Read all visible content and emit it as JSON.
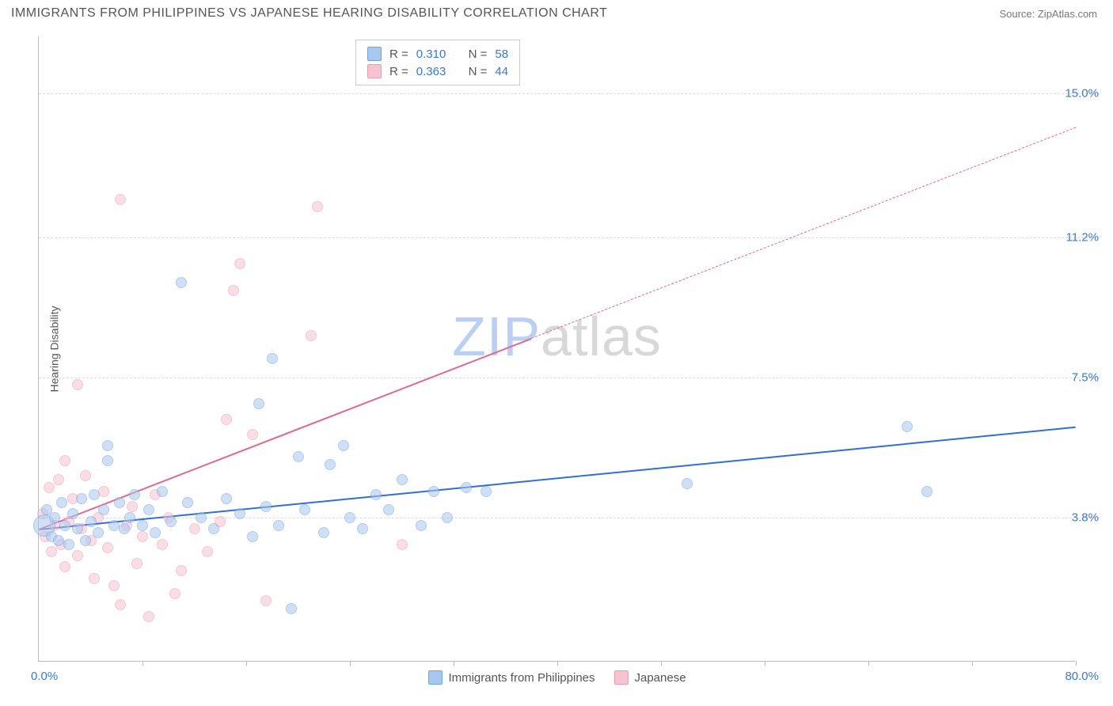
{
  "header": {
    "title": "IMMIGRANTS FROM PHILIPPINES VS JAPANESE HEARING DISABILITY CORRELATION CHART",
    "source": "Source: ZipAtlas.com"
  },
  "watermark": {
    "zip_color": "#b9cff3",
    "atlas_color": "#d8d8d8",
    "zip": "ZIP",
    "atlas": "atlas"
  },
  "chart": {
    "type": "scatter",
    "yaxis_title": "Hearing Disability",
    "xlim": [
      0,
      80
    ],
    "ylim": [
      0,
      16.5
    ],
    "x_min_label": "0.0%",
    "x_max_label": "80.0%",
    "yticks": [
      {
        "v": 3.8,
        "label": "3.8%"
      },
      {
        "v": 7.5,
        "label": "7.5%"
      },
      {
        "v": 11.2,
        "label": "11.2%"
      },
      {
        "v": 15.0,
        "label": "15.0%"
      }
    ],
    "xticks": [
      8,
      16,
      24,
      32,
      40,
      48,
      56,
      64,
      72,
      80
    ],
    "grid_color": "#dddddd",
    "axis_color": "#bbbbbb",
    "label_color": "#3478e6",
    "background": "#ffffff",
    "marker_radius": 7,
    "marker_radius_big": 14,
    "marker_opacity": 0.55,
    "series": [
      {
        "key": "philippines",
        "label": "Immigrants from Philippines",
        "fill": "#a9c8ef",
        "stroke": "#6ea3e3",
        "R": "0.310",
        "N": "58",
        "trend": {
          "x1": 0,
          "y1": 3.5,
          "x2": 80,
          "y2": 6.2,
          "color": "#2f6fd6",
          "solid_until_x": 80
        },
        "points": [
          {
            "x": 0.4,
            "y": 3.6,
            "big": true
          },
          {
            "x": 0.6,
            "y": 4.0
          },
          {
            "x": 1.0,
            "y": 3.3
          },
          {
            "x": 1.2,
            "y": 3.8
          },
          {
            "x": 1.5,
            "y": 3.2
          },
          {
            "x": 1.8,
            "y": 4.2
          },
          {
            "x": 2.0,
            "y": 3.6
          },
          {
            "x": 2.3,
            "y": 3.1
          },
          {
            "x": 2.6,
            "y": 3.9
          },
          {
            "x": 3.0,
            "y": 3.5
          },
          {
            "x": 3.3,
            "y": 4.3
          },
          {
            "x": 3.6,
            "y": 3.2
          },
          {
            "x": 4.0,
            "y": 3.7
          },
          {
            "x": 4.3,
            "y": 4.4
          },
          {
            "x": 4.6,
            "y": 3.4
          },
          {
            "x": 5.0,
            "y": 4.0
          },
          {
            "x": 5.3,
            "y": 5.7
          },
          {
            "x": 5.3,
            "y": 5.3
          },
          {
            "x": 5.8,
            "y": 3.6
          },
          {
            "x": 6.2,
            "y": 4.2
          },
          {
            "x": 6.6,
            "y": 3.5
          },
          {
            "x": 7.0,
            "y": 3.8
          },
          {
            "x": 7.4,
            "y": 4.4
          },
          {
            "x": 8.0,
            "y": 3.6
          },
          {
            "x": 8.5,
            "y": 4.0
          },
          {
            "x": 9.0,
            "y": 3.4
          },
          {
            "x": 9.5,
            "y": 4.5
          },
          {
            "x": 10.2,
            "y": 3.7
          },
          {
            "x": 11.0,
            "y": 10.0
          },
          {
            "x": 11.5,
            "y": 4.2
          },
          {
            "x": 12.5,
            "y": 3.8
          },
          {
            "x": 13.5,
            "y": 3.5
          },
          {
            "x": 14.5,
            "y": 4.3
          },
          {
            "x": 15.5,
            "y": 3.9
          },
          {
            "x": 16.5,
            "y": 3.3
          },
          {
            "x": 17.0,
            "y": 6.8
          },
          {
            "x": 17.5,
            "y": 4.1
          },
          {
            "x": 18.0,
            "y": 8.0
          },
          {
            "x": 18.5,
            "y": 3.6
          },
          {
            "x": 19.5,
            "y": 1.4
          },
          {
            "x": 20.0,
            "y": 5.4
          },
          {
            "x": 20.5,
            "y": 4.0
          },
          {
            "x": 22.0,
            "y": 3.4
          },
          {
            "x": 22.5,
            "y": 5.2
          },
          {
            "x": 23.5,
            "y": 5.7
          },
          {
            "x": 24.0,
            "y": 3.8
          },
          {
            "x": 25.0,
            "y": 3.5
          },
          {
            "x": 26.0,
            "y": 4.4
          },
          {
            "x": 27.0,
            "y": 4.0
          },
          {
            "x": 28.0,
            "y": 4.8
          },
          {
            "x": 29.5,
            "y": 3.6
          },
          {
            "x": 30.5,
            "y": 4.5
          },
          {
            "x": 31.5,
            "y": 3.8
          },
          {
            "x": 33.0,
            "y": 4.6
          },
          {
            "x": 34.5,
            "y": 4.5
          },
          {
            "x": 50.0,
            "y": 4.7
          },
          {
            "x": 67.0,
            "y": 6.2
          },
          {
            "x": 68.5,
            "y": 4.5
          }
        ]
      },
      {
        "key": "japanese",
        "label": "Japanese",
        "fill": "#f6c3d0",
        "stroke": "#ea9bb1",
        "R": "0.363",
        "N": "44",
        "trend": {
          "x1": 0,
          "y1": 3.5,
          "x2": 80,
          "y2": 14.1,
          "color": "#e36a8f",
          "solid_until_x": 38
        },
        "points": [
          {
            "x": 0.3,
            "y": 3.9
          },
          {
            "x": 0.5,
            "y": 3.3
          },
          {
            "x": 0.8,
            "y": 4.6
          },
          {
            "x": 1.0,
            "y": 2.9
          },
          {
            "x": 1.2,
            "y": 3.6
          },
          {
            "x": 1.5,
            "y": 4.8
          },
          {
            "x": 1.7,
            "y": 3.1
          },
          {
            "x": 2.0,
            "y": 2.5
          },
          {
            "x": 2.0,
            "y": 5.3
          },
          {
            "x": 2.3,
            "y": 3.7
          },
          {
            "x": 2.6,
            "y": 4.3
          },
          {
            "x": 3.0,
            "y": 2.8
          },
          {
            "x": 3.0,
            "y": 7.3
          },
          {
            "x": 3.3,
            "y": 3.5
          },
          {
            "x": 3.6,
            "y": 4.9
          },
          {
            "x": 4.0,
            "y": 3.2
          },
          {
            "x": 4.3,
            "y": 2.2
          },
          {
            "x": 4.6,
            "y": 3.8
          },
          {
            "x": 5.0,
            "y": 4.5
          },
          {
            "x": 5.3,
            "y": 3.0
          },
          {
            "x": 5.8,
            "y": 2.0
          },
          {
            "x": 6.3,
            "y": 1.5
          },
          {
            "x": 6.3,
            "y": 12.2
          },
          {
            "x": 6.8,
            "y": 3.6
          },
          {
            "x": 7.2,
            "y": 4.1
          },
          {
            "x": 7.6,
            "y": 2.6
          },
          {
            "x": 8.0,
            "y": 3.3
          },
          {
            "x": 8.5,
            "y": 1.2
          },
          {
            "x": 9.0,
            "y": 4.4
          },
          {
            "x": 9.5,
            "y": 3.1
          },
          {
            "x": 10.0,
            "y": 3.8
          },
          {
            "x": 10.5,
            "y": 1.8
          },
          {
            "x": 11.0,
            "y": 2.4
          },
          {
            "x": 12.0,
            "y": 3.5
          },
          {
            "x": 13.0,
            "y": 2.9
          },
          {
            "x": 14.0,
            "y": 3.7
          },
          {
            "x": 14.5,
            "y": 6.4
          },
          {
            "x": 15.0,
            "y": 9.8
          },
          {
            "x": 15.5,
            "y": 10.5
          },
          {
            "x": 16.5,
            "y": 6.0
          },
          {
            "x": 17.5,
            "y": 1.6
          },
          {
            "x": 21.0,
            "y": 8.6
          },
          {
            "x": 21.5,
            "y": 12.0
          },
          {
            "x": 28.0,
            "y": 3.1
          }
        ]
      }
    ]
  },
  "legend": {
    "R_label": "R =",
    "N_label": "N ="
  }
}
